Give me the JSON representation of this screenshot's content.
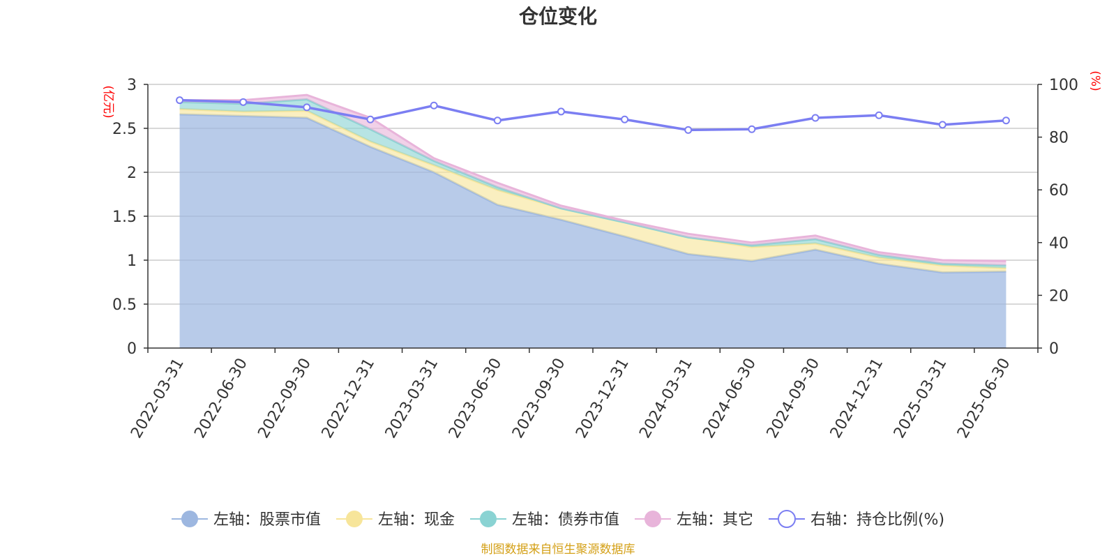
{
  "chart_data": {
    "type": "area",
    "title": "仓位变化",
    "categories": [
      "2022-03-31",
      "2022-06-30",
      "2022-09-30",
      "2022-12-31",
      "2023-03-31",
      "2023-06-30",
      "2023-09-30",
      "2023-12-31",
      "2024-03-31",
      "2024-06-30",
      "2024-09-30",
      "2024-12-31",
      "2025-03-31",
      "2025-06-30"
    ],
    "left_axis": {
      "unit": "(亿元)",
      "ylim": [
        0,
        3
      ],
      "ticks": [
        "0",
        "0.5",
        "1",
        "1.5",
        "2",
        "2.5",
        "3"
      ]
    },
    "right_axis": {
      "unit": "(%)",
      "ylim": [
        0,
        100
      ],
      "ticks": [
        "0",
        "20",
        "40",
        "60",
        "80",
        "100"
      ]
    },
    "stacked": true,
    "series": [
      {
        "name": "左轴：股票市值",
        "axis": "left",
        "color": "#9db7e0",
        "values": [
          2.66,
          2.64,
          2.62,
          2.29,
          2.0,
          1.63,
          1.46,
          1.27,
          1.07,
          0.99,
          1.12,
          0.96,
          0.86,
          0.87
        ]
      },
      {
        "name": "左轴：现金",
        "axis": "left",
        "color": "#f7e59a",
        "values": [
          0.06,
          0.05,
          0.08,
          0.06,
          0.08,
          0.17,
          0.13,
          0.16,
          0.19,
          0.16,
          0.07,
          0.07,
          0.08,
          0.04
        ]
      },
      {
        "name": "左轴：债券市值",
        "axis": "left",
        "color": "#8ad3d3",
        "values": [
          0.08,
          0.09,
          0.13,
          0.14,
          0.05,
          0.03,
          0.0,
          0.0,
          0.0,
          0.02,
          0.05,
          0.03,
          0.02,
          0.03
        ]
      },
      {
        "name": "左轴：其它",
        "axis": "left",
        "color": "#e8b4da",
        "values": [
          0.02,
          0.04,
          0.05,
          0.13,
          0.03,
          0.05,
          0.03,
          0.02,
          0.04,
          0.03,
          0.04,
          0.03,
          0.04,
          0.05
        ]
      },
      {
        "name": "右轴：持仓比例(%)",
        "axis": "right",
        "type": "line",
        "color": "#7b7ef2",
        "values": [
          94.0,
          93.3,
          91.3,
          86.7,
          92.0,
          86.3,
          89.7,
          86.7,
          82.7,
          83.0,
          87.3,
          88.3,
          84.7,
          86.3
        ]
      }
    ],
    "legend_position": "bottom",
    "grid": true
  },
  "footer": {
    "source": "制图数据来自恒生聚源数据库"
  }
}
